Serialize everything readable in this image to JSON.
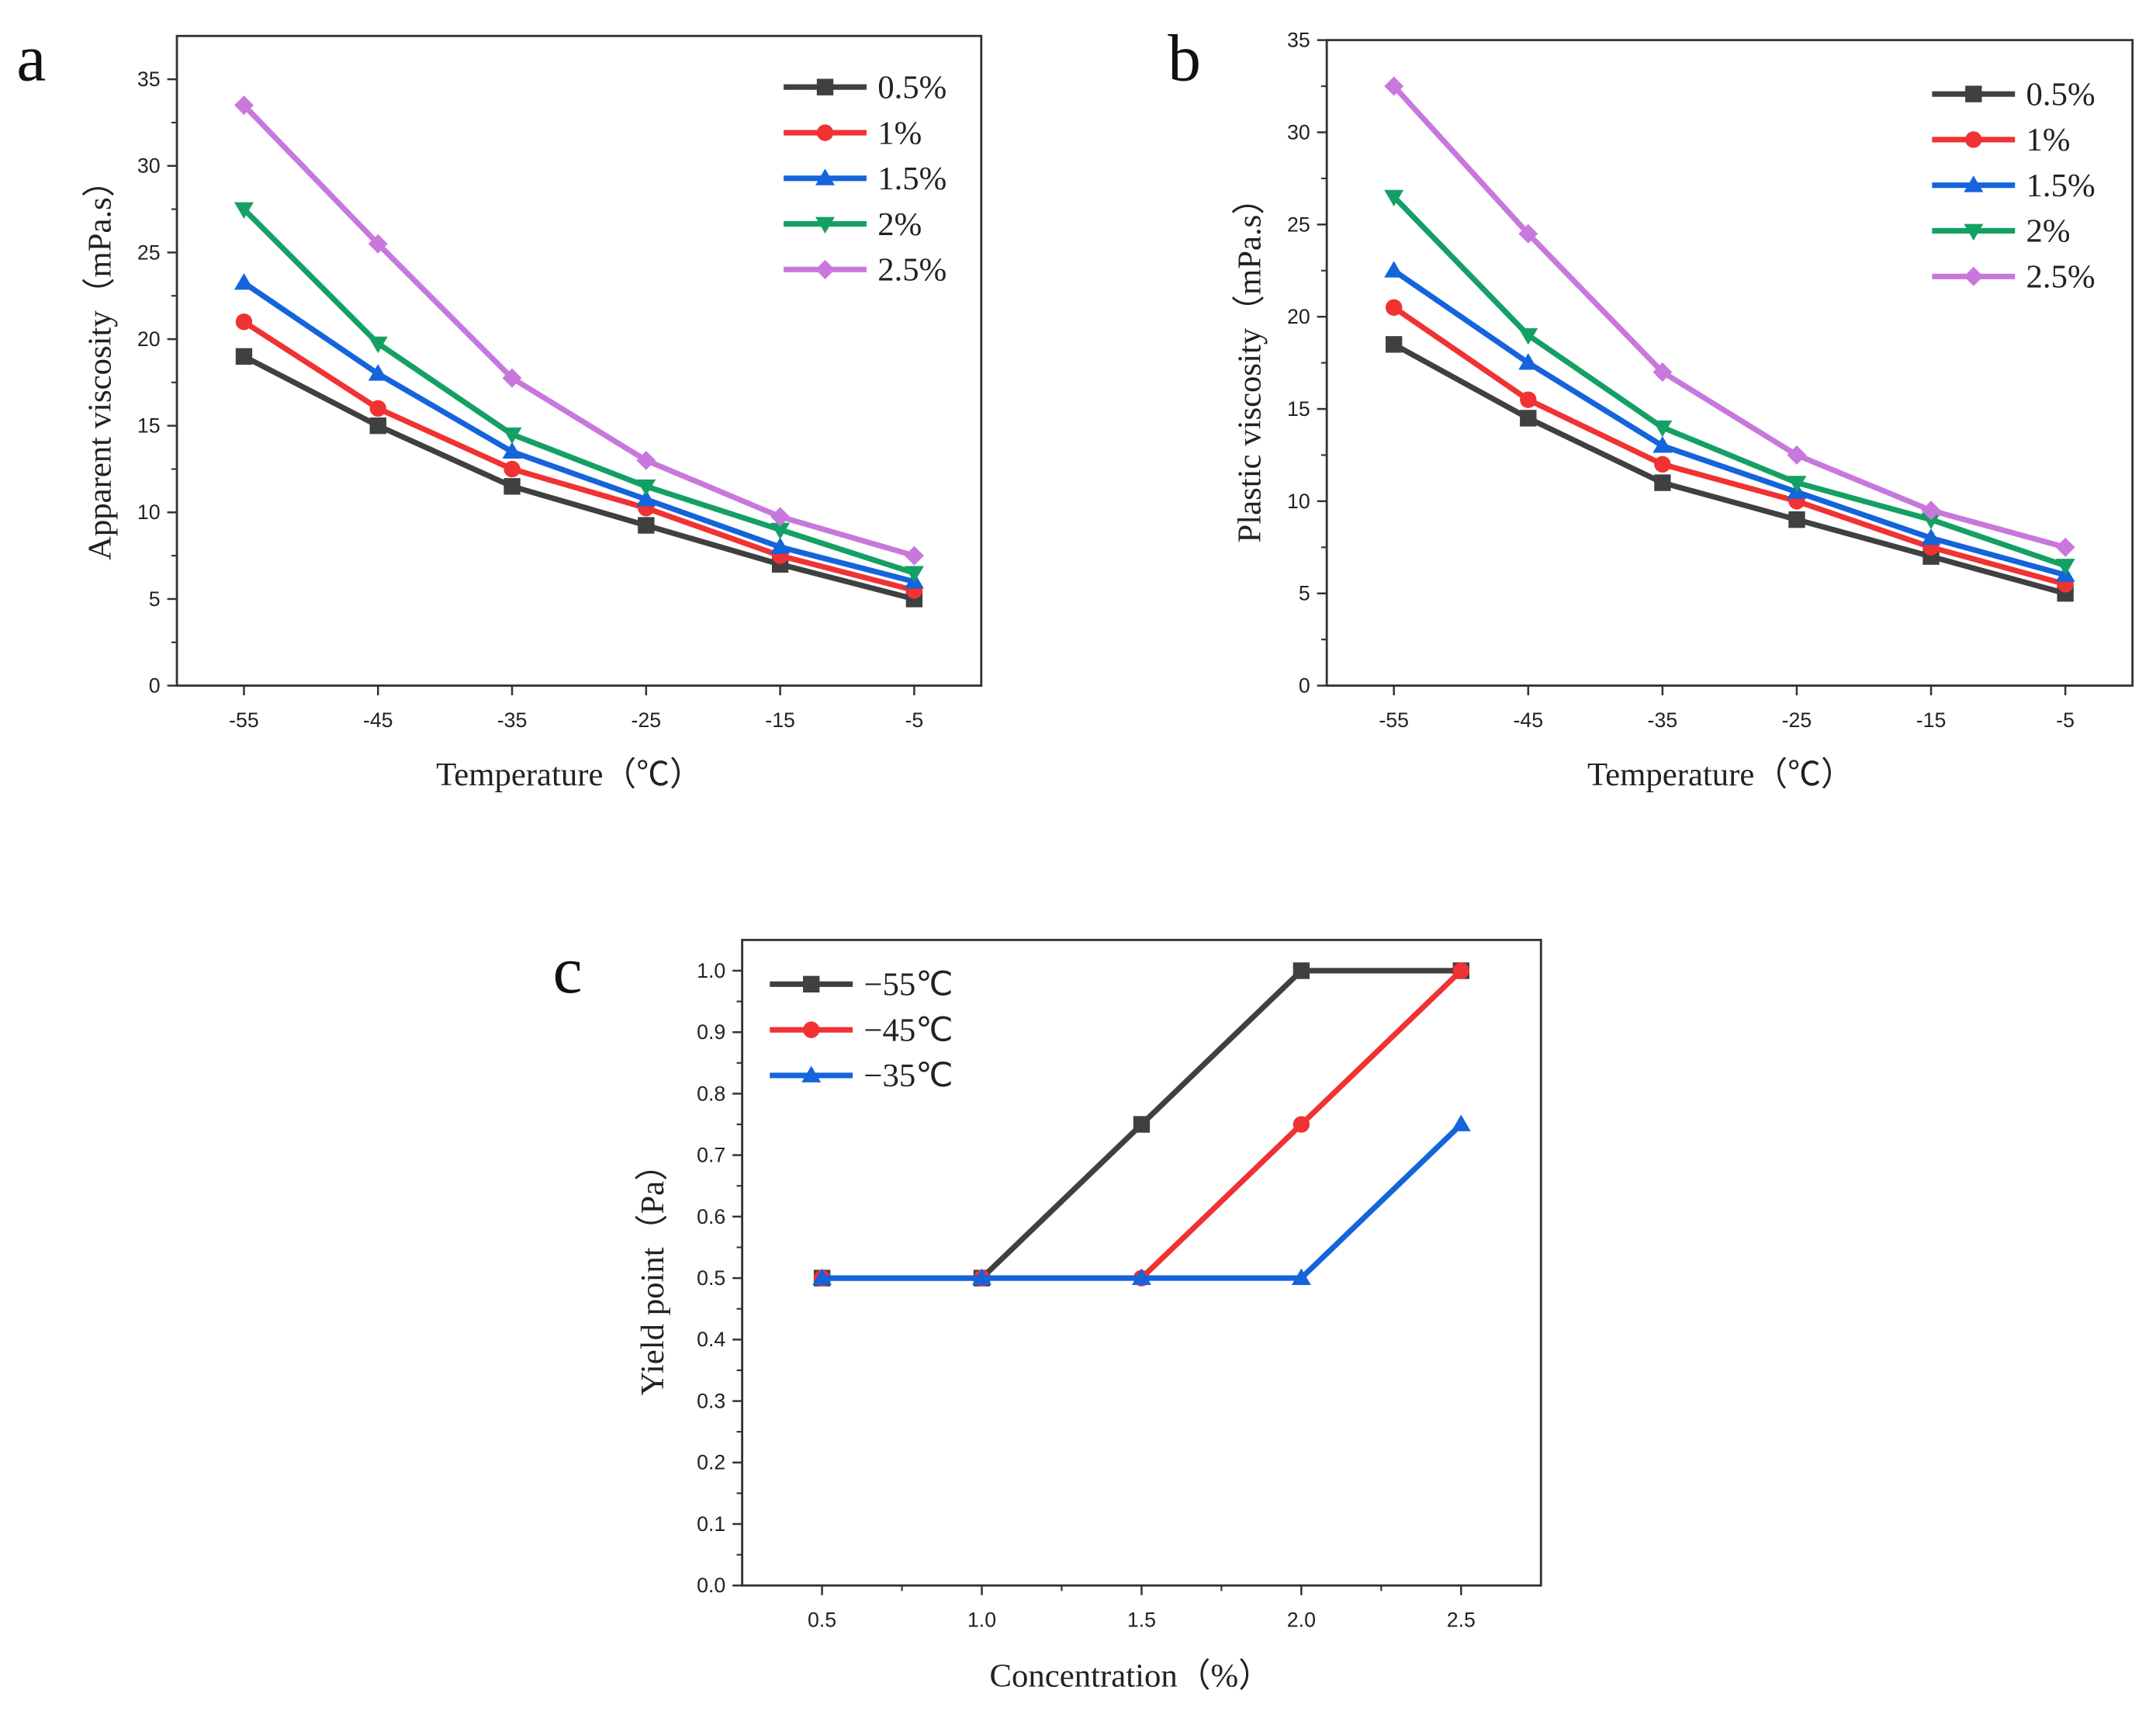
{
  "chart_data": [
    {
      "panel": "a",
      "type": "line",
      "xlabel": "Temperature（℃）",
      "ylabel": "Apparent viscosity（mPa.s）",
      "x": [
        -55,
        -45,
        -35,
        -25,
        -15,
        -5
      ],
      "xticks": [
        "-55",
        "-45",
        "-35",
        "-25",
        "-15",
        "-5"
      ],
      "xlim": [
        -60,
        0
      ],
      "ylim": [
        0,
        37.5
      ],
      "yticks": [
        "0",
        "5",
        "10",
        "15",
        "20",
        "25",
        "30",
        "35"
      ],
      "legend": "top-right",
      "series": [
        {
          "name": "0.5%",
          "color": "#404040",
          "marker": "square",
          "values": [
            19,
            15,
            11.5,
            9.25,
            7,
            5
          ]
        },
        {
          "name": "1%",
          "color": "#f03232",
          "marker": "circle",
          "values": [
            21,
            16,
            12.5,
            10.25,
            7.5,
            5.5
          ]
        },
        {
          "name": "1.5%",
          "color": "#1464dc",
          "marker": "triangle-up",
          "values": [
            23.25,
            18,
            13.5,
            10.75,
            8,
            6
          ]
        },
        {
          "name": "2%",
          "color": "#14a064",
          "marker": "triangle-down",
          "values": [
            27.5,
            19.75,
            14.5,
            11.5,
            9,
            6.5
          ]
        },
        {
          "name": "2.5%",
          "color": "#c878dc",
          "marker": "diamond",
          "values": [
            33.5,
            25.5,
            17.75,
            13,
            9.75,
            7.5
          ]
        }
      ]
    },
    {
      "panel": "b",
      "type": "line",
      "xlabel": "Temperature（℃）",
      "ylabel": "Plastic viscosity（mPa.s）",
      "x": [
        -55,
        -45,
        -35,
        -25,
        -15,
        -5
      ],
      "xticks": [
        "-55",
        "-45",
        "-35",
        "-25",
        "-15",
        "-5"
      ],
      "xlim": [
        -60,
        0
      ],
      "ylim": [
        0,
        35
      ],
      "yticks": [
        "0",
        "5",
        "10",
        "15",
        "20",
        "25",
        "30",
        "35"
      ],
      "legend": "top-right",
      "series": [
        {
          "name": "0.5%",
          "color": "#404040",
          "marker": "square",
          "values": [
            18.5,
            14.5,
            11,
            9,
            7,
            5
          ]
        },
        {
          "name": "1%",
          "color": "#f03232",
          "marker": "circle",
          "values": [
            20.5,
            15.5,
            12,
            10,
            7.5,
            5.5
          ]
        },
        {
          "name": "1.5%",
          "color": "#1464dc",
          "marker": "triangle-up",
          "values": [
            22.5,
            17.5,
            13,
            10.5,
            8,
            6
          ]
        },
        {
          "name": "2%",
          "color": "#14a064",
          "marker": "triangle-down",
          "values": [
            26.5,
            19,
            14,
            11,
            9,
            6.5
          ]
        },
        {
          "name": "2.5%",
          "color": "#c878dc",
          "marker": "diamond",
          "values": [
            32.5,
            24.5,
            17,
            12.5,
            9.5,
            7.5
          ]
        }
      ]
    },
    {
      "panel": "c",
      "type": "line",
      "xlabel": "Concentration（%）",
      "ylabel": "Yield point（Pa）",
      "x": [
        0.5,
        1.0,
        1.5,
        2.0,
        2.5
      ],
      "xticks": [
        "0.5",
        "1.0",
        "1.5",
        "2.0",
        "2.5"
      ],
      "xlim": [
        0.25,
        2.75
      ],
      "ylim": [
        0,
        1.05
      ],
      "yticks": [
        "0.0",
        "0.1",
        "0.2",
        "0.3",
        "0.4",
        "0.5",
        "0.6",
        "0.7",
        "0.8",
        "0.9",
        "1.0"
      ],
      "legend": "top-left",
      "series": [
        {
          "name": "−55℃",
          "color": "#404040",
          "marker": "square",
          "values": [
            0.5,
            0.5,
            0.75,
            1.0,
            1.0
          ]
        },
        {
          "name": "−45℃",
          "color": "#f03232",
          "marker": "circle",
          "values": [
            0.5,
            0.5,
            0.5,
            0.75,
            1.0
          ]
        },
        {
          "name": "−35℃",
          "color": "#1464dc",
          "marker": "triangle-up",
          "values": [
            0.5,
            0.5,
            0.5,
            0.5,
            0.75
          ]
        }
      ]
    }
  ]
}
